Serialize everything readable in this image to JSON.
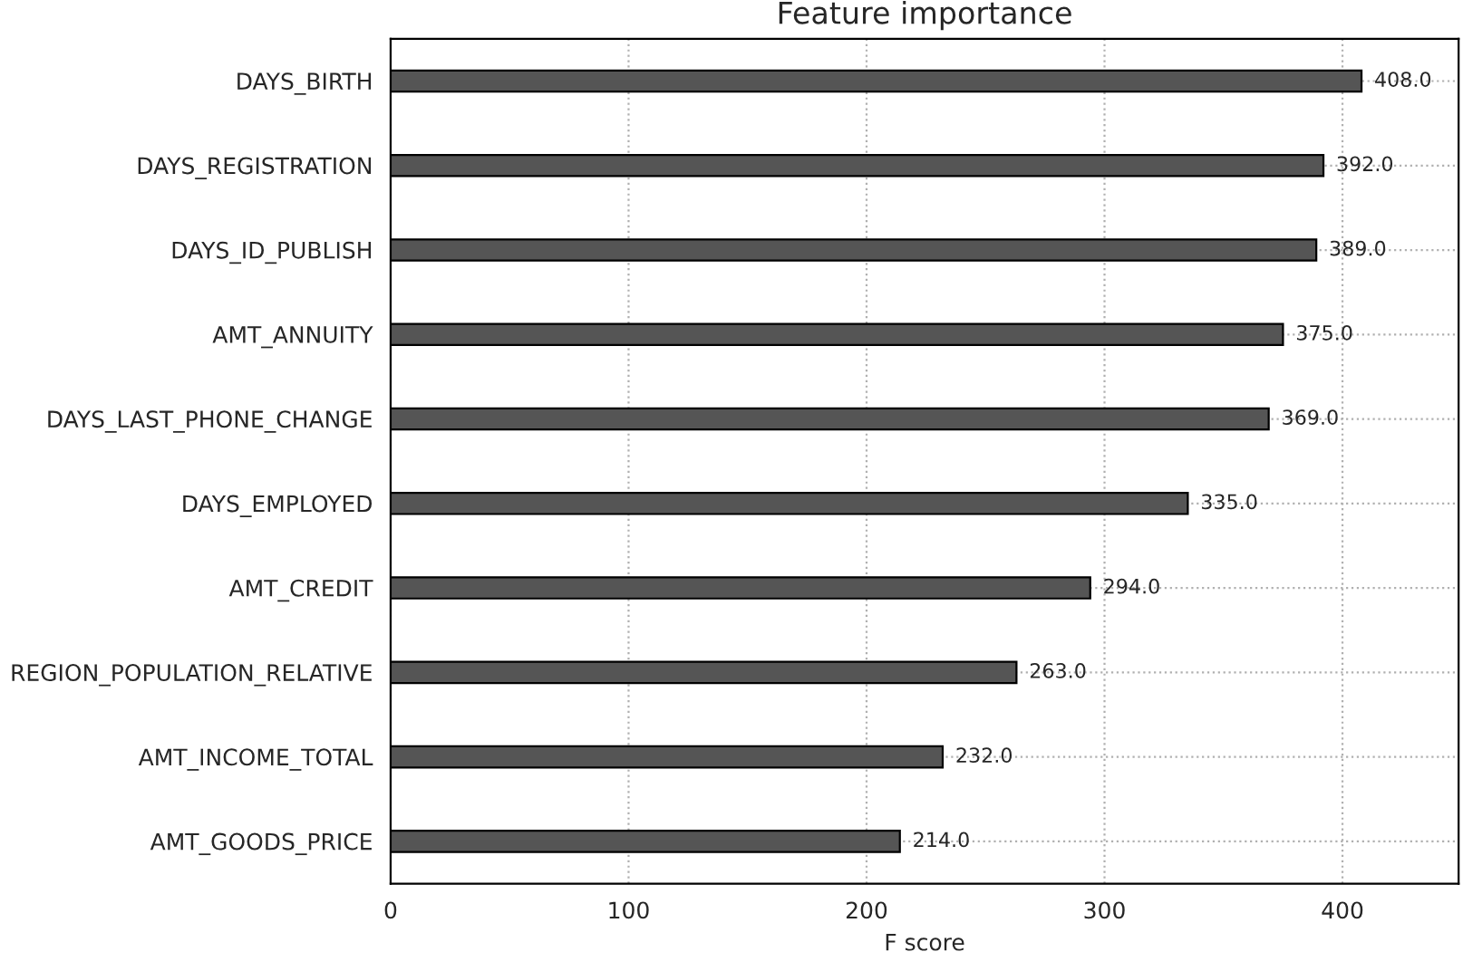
{
  "chart_data": {
    "type": "bar",
    "orientation": "horizontal",
    "title": "Feature importance",
    "xlabel": "F score",
    "categories": [
      "DAYS_BIRTH",
      "DAYS_REGISTRATION",
      "DAYS_ID_PUBLISH",
      "AMT_ANNUITY",
      "DAYS_LAST_PHONE_CHANGE",
      "DAYS_EMPLOYED",
      "AMT_CREDIT",
      "REGION_POPULATION_RELATIVE",
      "AMT_INCOME_TOTAL",
      "AMT_GOODS_PRICE"
    ],
    "values": [
      408,
      392,
      389,
      375,
      369,
      335,
      294,
      263,
      232,
      214
    ],
    "value_labels": [
      "408.0",
      "392.0",
      "389.0",
      "375.0",
      "369.0",
      "335.0",
      "294.0",
      "263.0",
      "232.0",
      "214.0"
    ],
    "color": "#555555",
    "xlim": [
      0,
      448.8
    ],
    "xticks": [
      0,
      100,
      200,
      300,
      400
    ],
    "grid": true
  }
}
